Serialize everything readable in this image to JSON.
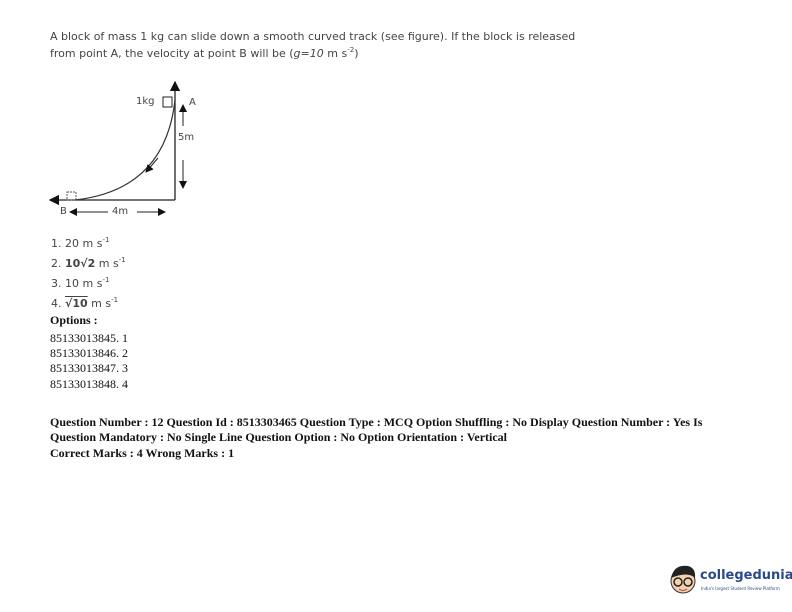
{
  "question": {
    "line1": "A block of mass 1 kg can slide down a smooth curved track (see figure). If the block is released",
    "line2_prefix": "from point A, the velocity at point B will be (",
    "line2_g": "g",
    "line2_mid": "=",
    "line2_val": "10",
    "line2_unit": " m s",
    "line2_exp": "-2",
    "line2_suffix": ")"
  },
  "figure": {
    "mass_label": "1kg",
    "point_a": "A",
    "point_b": "B",
    "height_label": "5m",
    "width_label": "4m"
  },
  "choices": [
    {
      "num": "1. ",
      "value": "20",
      "unit": " m s",
      "exp": "-1"
    },
    {
      "num": "2. ",
      "value": "10√2",
      "unit": " m s",
      "exp": "-1"
    },
    {
      "num": "3. ",
      "value": "10",
      "unit": " m s",
      "exp": "-1"
    },
    {
      "num": "4. ",
      "value": "√10",
      "unit": " m s",
      "exp": "-1"
    }
  ],
  "options_heading": "Options :",
  "options": [
    "85133013845. 1",
    "85133013846. 2",
    "85133013847. 3",
    "85133013848. 4"
  ],
  "meta": {
    "line1": "Question Number : 12 Question Id : 8513303465 Question Type : MCQ Option Shuffling : No Display Question Number : Yes Is",
    "line2": "Question Mandatory : No Single Line Question Option : No Option Orientation : Vertical",
    "line3": "Correct Marks : 4 Wrong Marks : 1"
  },
  "logo": {
    "name": "collegedunia",
    "tagline": "India's largest Student Review Platform"
  }
}
